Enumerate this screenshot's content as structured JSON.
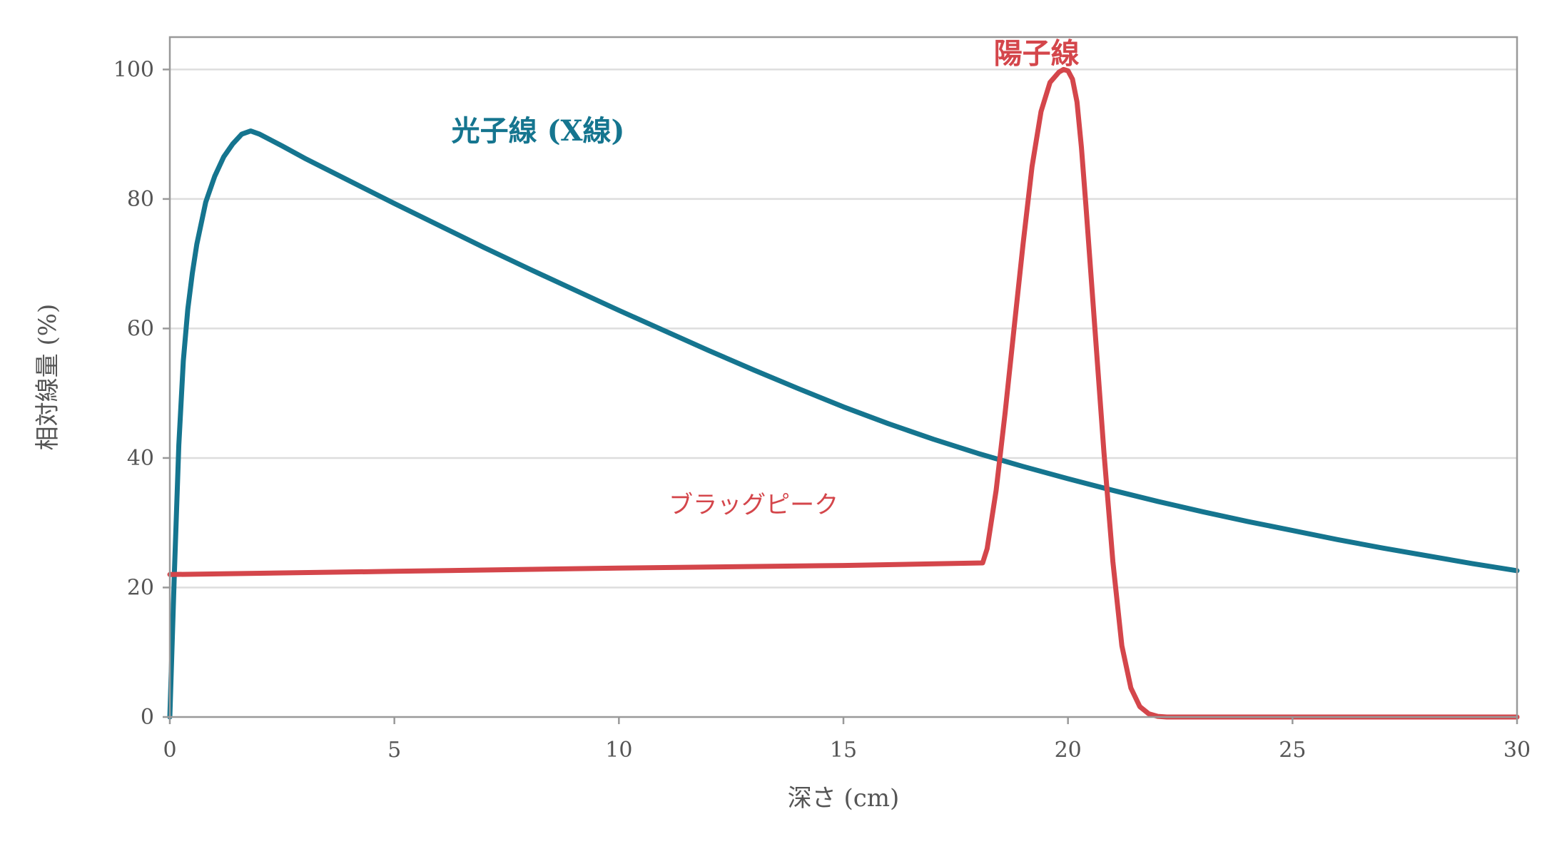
{
  "chart_data": {
    "type": "line",
    "title": "",
    "xlabel": "深さ (cm)",
    "ylabel": "相対線量 (%)",
    "xlim": [
      0,
      30
    ],
    "ylim": [
      0,
      105
    ],
    "xticks": [
      0,
      5,
      10,
      15,
      20,
      25,
      30
    ],
    "yticks": [
      0,
      20,
      40,
      60,
      80,
      100
    ],
    "grid": "horizontal",
    "legend": "none",
    "colors": {
      "photon": "#15758f",
      "proton": "#d4464b",
      "grid": "#dddddd",
      "frame": "#999999"
    },
    "series": [
      {
        "name": "光子線 (X線)",
        "x": [
          0,
          0.1,
          0.2,
          0.3,
          0.4,
          0.5,
          0.6,
          0.8,
          1.0,
          1.2,
          1.4,
          1.6,
          1.8,
          2.0,
          2.5,
          3,
          4,
          5,
          6,
          7,
          8,
          9,
          10,
          11,
          12,
          13,
          14,
          15,
          16,
          17,
          18,
          19,
          20,
          21,
          22,
          23,
          24,
          25,
          26,
          27,
          28,
          29,
          30
        ],
        "values": [
          0,
          22,
          42,
          55,
          63,
          68.5,
          73,
          79.5,
          83.5,
          86.5,
          88.5,
          90,
          90.5,
          90,
          88.2,
          86.3,
          82.8,
          79.3,
          75.9,
          72.5,
          69.2,
          66.0,
          62.8,
          59.7,
          56.6,
          53.6,
          50.7,
          47.9,
          45.3,
          42.9,
          40.7,
          38.7,
          36.8,
          35.0,
          33.3,
          31.7,
          30.2,
          28.8,
          27.4,
          26.1,
          24.9,
          23.7,
          22.6
        ]
      },
      {
        "name": "陽子線",
        "x": [
          0,
          5,
          10,
          15,
          18.1,
          18.2,
          18.4,
          18.6,
          18.8,
          19.0,
          19.2,
          19.4,
          19.6,
          19.8,
          19.9,
          20.0,
          20.1,
          20.2,
          20.3,
          20.4,
          20.6,
          20.8,
          21.0,
          21.2,
          21.4,
          21.6,
          21.8,
          22.0,
          22.2,
          22.5,
          25,
          30
        ],
        "values": [
          22,
          22.5,
          23,
          23.4,
          23.8,
          26,
          35,
          47,
          60,
          73,
          85,
          93.5,
          98,
          99.6,
          100,
          99.8,
          98.5,
          95,
          88,
          79,
          60,
          41,
          24,
          11,
          4.5,
          1.6,
          0.5,
          0.1,
          0,
          0,
          0,
          0
        ]
      }
    ],
    "annotations": [
      {
        "text": "ブラッグピーク",
        "x": 13,
        "y": 31.5
      }
    ]
  }
}
